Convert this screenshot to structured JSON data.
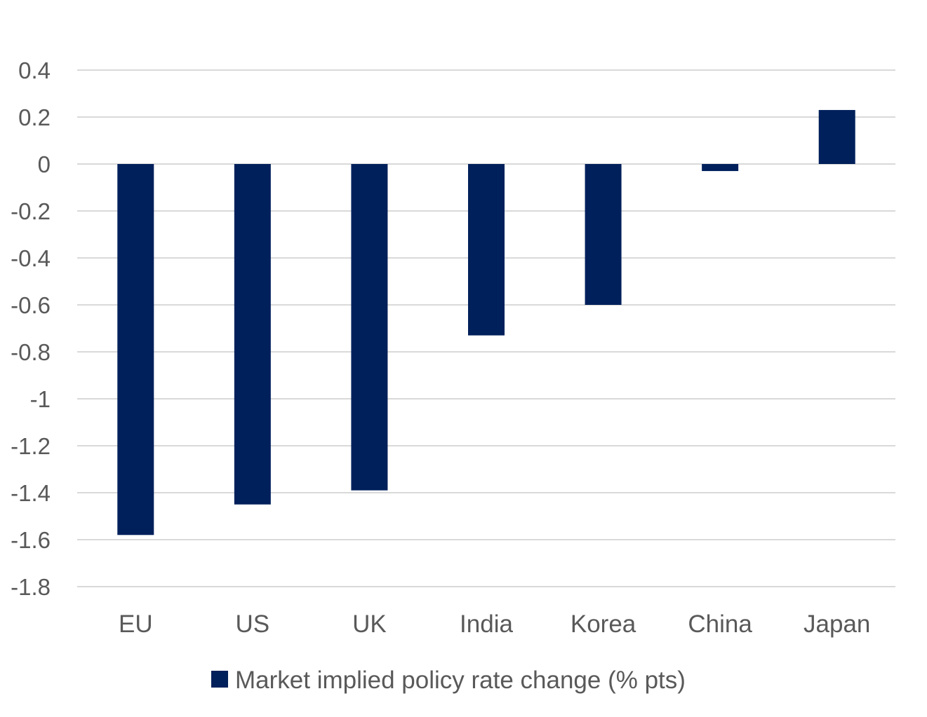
{
  "chart_data": {
    "type": "bar",
    "title": "",
    "xlabel": "",
    "ylabel": "",
    "categories": [
      "EU",
      "US",
      "UK",
      "India",
      "Korea",
      "China",
      "Japan"
    ],
    "series": [
      {
        "name": "Market implied policy rate change (% pts)",
        "values": [
          -1.58,
          -1.45,
          -1.39,
          -0.73,
          -0.6,
          -0.03,
          0.23
        ],
        "color": "#00205b"
      }
    ],
    "ylim": [
      -1.8,
      0.4
    ],
    "yticks": [
      "0.4",
      "0.2",
      "0",
      "-0.2",
      "-0.4",
      "-0.6",
      "-0.8",
      "-1",
      "-1.2",
      "-1.4",
      "-1.6",
      "-1.8"
    ],
    "grid": true,
    "legend_position": "bottom"
  }
}
